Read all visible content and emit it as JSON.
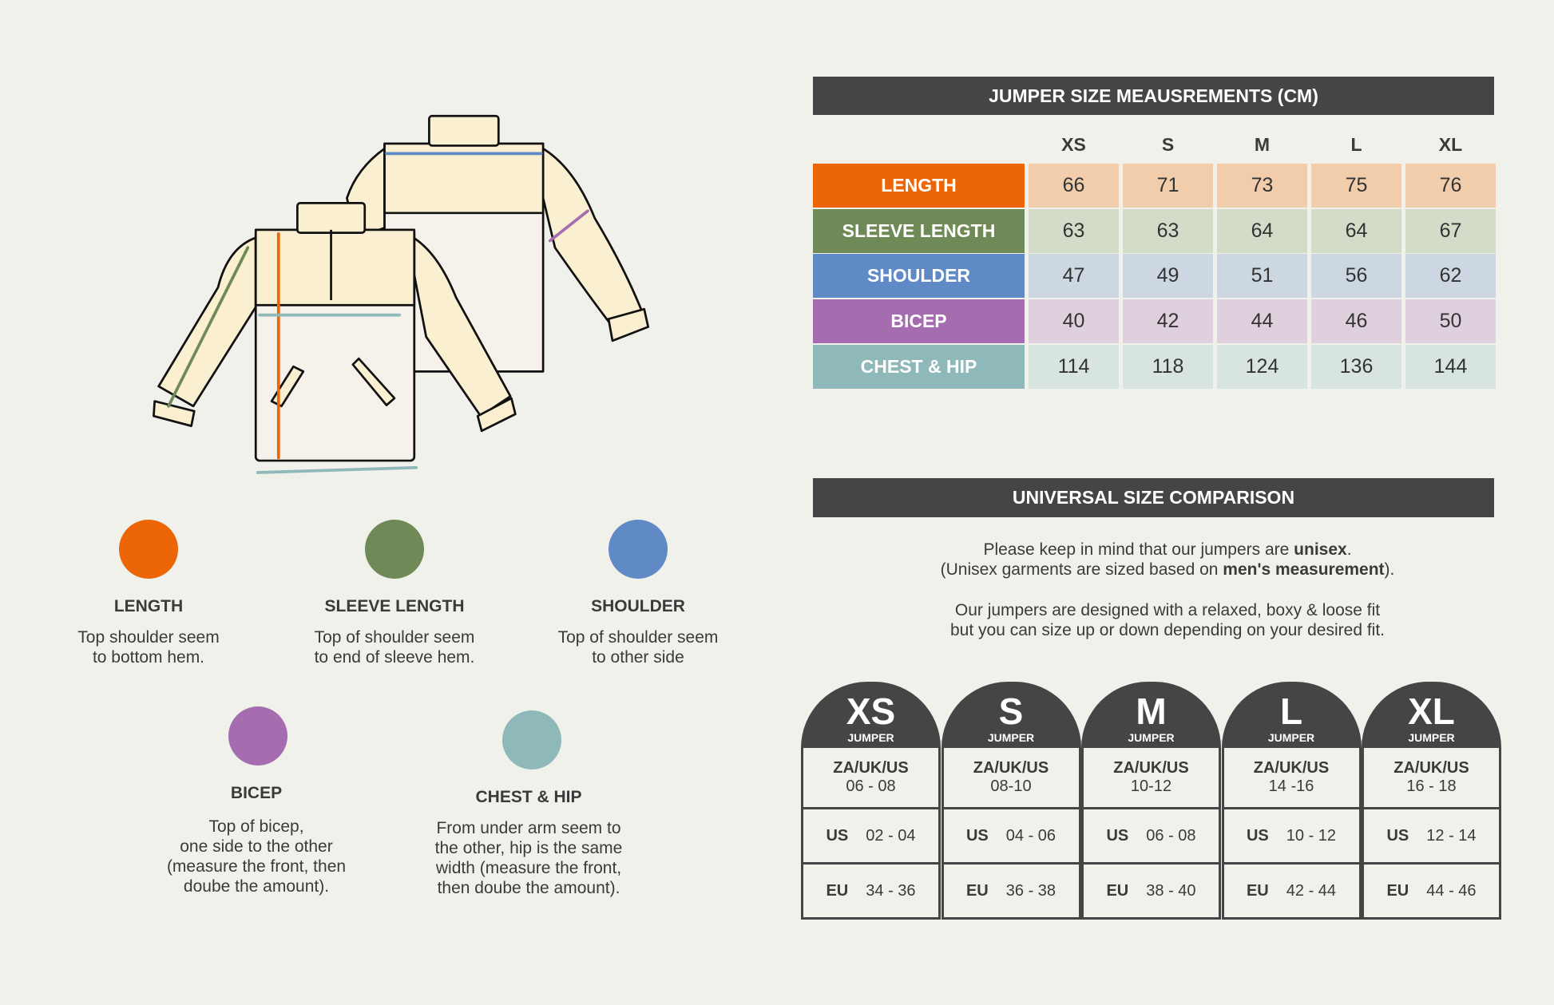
{
  "colors": {
    "length": "#ec6607",
    "sleeve_length": "#6f8a56",
    "shoulder": "#5f8ac6",
    "bicep": "#a56db0",
    "chest_hip": "#8fb8b8",
    "dark": "#454545",
    "background": "#f1f1ec"
  },
  "legend": [
    {
      "key": "length",
      "title": "LENGTH",
      "desc": [
        "Top shoulder seem",
        "to bottom hem."
      ]
    },
    {
      "key": "sleeve_length",
      "title": "SLEEVE LENGTH",
      "desc": [
        "Top of shoulder seem",
        "to end of sleeve hem."
      ]
    },
    {
      "key": "shoulder",
      "title": "SHOULDER",
      "desc": [
        "Top of shoulder seem",
        "to other side"
      ]
    },
    {
      "key": "bicep",
      "title": "BICEP",
      "desc": [
        "Top of bicep,",
        "one side to the other",
        "(measure the front, then",
        "doube the amount)."
      ]
    },
    {
      "key": "chest_hip",
      "title": "CHEST & HIP",
      "desc": [
        "From under arm seem to",
        "the other, hip is the same",
        "width (measure the front,",
        "then doube the amount)."
      ]
    }
  ],
  "measurements": {
    "title": "JUMPER SIZE MEAUSREMENTS (CM)",
    "sizes": [
      "XS",
      "S",
      "M",
      "L",
      "XL"
    ],
    "rows": [
      {
        "label": "LENGTH",
        "color": "#ec6607",
        "tint": "#f2cdac",
        "values": [
          66,
          71,
          73,
          75,
          76
        ]
      },
      {
        "label": "SLEEVE LENGTH",
        "color": "#6f8a56",
        "tint": "#d3dbc9",
        "values": [
          63,
          63,
          64,
          64,
          67
        ]
      },
      {
        "label": "SHOULDER",
        "color": "#5f8ac6",
        "tint": "#cdd7e2",
        "values": [
          47,
          49,
          51,
          56,
          62
        ]
      },
      {
        "label": "BICEP",
        "color": "#a56db0",
        "tint": "#ded0dd",
        "values": [
          40,
          42,
          44,
          46,
          50
        ]
      },
      {
        "label": "CHEST & HIP",
        "color": "#8fb8b8",
        "tint": "#d7e4df",
        "values": [
          114,
          118,
          124,
          136,
          144
        ]
      }
    ]
  },
  "comparison": {
    "title": "UNIVERSAL SIZE COMPARISON",
    "note1": {
      "a": "Please keep in mind that our jumpers are ",
      "b": "unisex",
      "c": "."
    },
    "note2": {
      "a": "(Unisex garments are sized based on ",
      "b": "men's measurement",
      "c": ")."
    },
    "note3": "Our jumpers are designed with a relaxed, boxy & loose fit",
    "note4": "but you can size up or down depending on your desired fit.",
    "sizes": [
      {
        "size": "XS",
        "sub": "JUMPER",
        "za_label": "ZA/UK/US",
        "za": "06 - 08",
        "us_label": "US",
        "us": "02 - 04",
        "eu_label": "EU",
        "eu": "34 - 36"
      },
      {
        "size": "S",
        "sub": "JUMPER",
        "za_label": "ZA/UK/US",
        "za": "08-10",
        "us_label": "US",
        "us": "04 - 06",
        "eu_label": "EU",
        "eu": "36 - 38"
      },
      {
        "size": "M",
        "sub": "JUMPER",
        "za_label": "ZA/UK/US",
        "za": "10-12",
        "us_label": "US",
        "us": "06 - 08",
        "eu_label": "EU",
        "eu": "38 - 40"
      },
      {
        "size": "L",
        "sub": "JUMPER",
        "za_label": "ZA/UK/US",
        "za": "14 -16",
        "us_label": "US",
        "us": "10 - 12",
        "eu_label": "EU",
        "eu": "42 - 44"
      },
      {
        "size": "XL",
        "sub": "JUMPER",
        "za_label": "ZA/UK/US",
        "za": "16 - 18",
        "us_label": "US",
        "us": "12 - 14",
        "eu_label": "EU",
        "eu": "44 - 46"
      }
    ]
  }
}
